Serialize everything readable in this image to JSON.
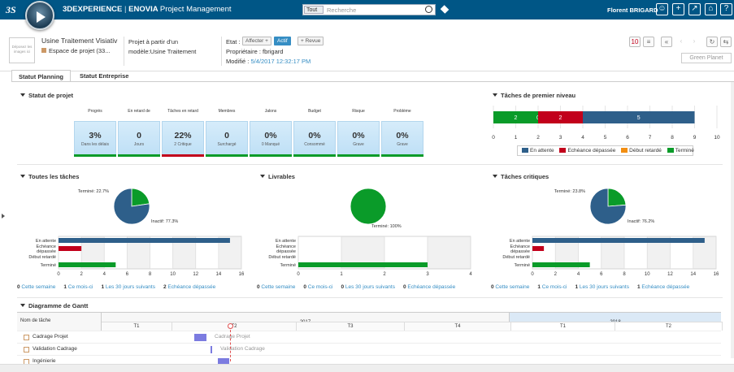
{
  "topbar": {
    "brand_bold": "3DEXPERIENCE",
    "brand_sep": "|",
    "brand_enovia": "ENOVIA",
    "brand_app": "Project Management",
    "search_scope": "Tout",
    "search_placeholder": "Recherche",
    "user": "Florent BRIGARD"
  },
  "header": {
    "thumb_text": "Déposez les images ici",
    "title": "Usine Traitement Visiativ",
    "subtitle": "Espace de projet (33...",
    "description": "Projet à partir d'un\nmodèle:Usine Traitement",
    "state_label": "Etat :",
    "state_buttons": [
      "Affecter +",
      "Actif",
      "+ Revue"
    ],
    "owner": "Propriétaire : fbrigard",
    "modified_label": "Modifié : ",
    "modified_value": "5/4/2017 12:32:17 PM",
    "green_planet": "Green Planet",
    "badge_count": "10"
  },
  "tabs": [
    "Statut Planning",
    "Statut Entreprise"
  ],
  "sections": {
    "project_status": "Statut de projet",
    "top_level_tasks": "Tâches de premier niveau",
    "all_tasks": "Toutes les tâches",
    "deliverables": "Livrables",
    "critical_tasks": "Tâches critiques",
    "gantt": "Diagramme de Gantt"
  },
  "kpis": [
    {
      "label": "Progrès",
      "value": "3%",
      "sub": "Dans les délais",
      "bar": "green"
    },
    {
      "label": "En retard de",
      "value": "0",
      "sub": "Jours",
      "bar": "green"
    },
    {
      "label": "Tâches en retard",
      "value": "22%",
      "sub": "2 Critique",
      "bar": "red"
    },
    {
      "label": "Membres",
      "value": "0",
      "sub": "Surchargé",
      "bar": "green"
    },
    {
      "label": "Jalons",
      "value": "0%",
      "sub": "0 Manqué",
      "bar": "green"
    },
    {
      "label": "Budget",
      "value": "0%",
      "sub": "Consommé",
      "bar": "green"
    },
    {
      "label": "Risque",
      "value": "0%",
      "sub": "Grave",
      "bar": "green"
    },
    {
      "label": "Problème",
      "value": "0%",
      "sub": "Grave",
      "bar": "green"
    }
  ],
  "colors": {
    "waiting": "#2e5f8a",
    "overdue": "#c2001b",
    "late_start": "#f28e12",
    "done": "#0a9b29",
    "link": "#368ec4"
  },
  "chart_data": [
    {
      "type": "bar",
      "title": "Tâches de premier niveau",
      "orientation": "horizontal-stacked",
      "series": [
        {
          "name": "Terminé",
          "value": 2,
          "color": "#0a9b29"
        },
        {
          "name": "Début retardé",
          "value": 0,
          "color": "#f28e12"
        },
        {
          "name": "Echéance dépassée",
          "value": 2,
          "color": "#c2001b"
        },
        {
          "name": "En attente",
          "value": 5,
          "color": "#2e5f8a"
        }
      ],
      "xlim": [
        0,
        10
      ],
      "xticks": [
        "0",
        "1",
        "2",
        "3",
        "4",
        "5",
        "6",
        "7",
        "8",
        "9",
        "10"
      ],
      "legend": [
        "En attente",
        "Echéance dépassée",
        "Début retardé",
        "Terminé"
      ]
    },
    {
      "type": "pie",
      "title": "Toutes les tâches",
      "slices": [
        {
          "label": "Terminé: 22.7%",
          "value": 22.7,
          "color": "#0a9b29"
        },
        {
          "label": "Inactif: 77.3%",
          "value": 77.3,
          "color": "#2e5f8a"
        }
      ]
    },
    {
      "type": "bar",
      "title": "Toutes les tâches",
      "categories": [
        "En attente",
        "Echéance dépassée",
        "Début retardé",
        "Terminé"
      ],
      "values": [
        15,
        2,
        0,
        5
      ],
      "colors": [
        "#2e5f8a",
        "#c2001b",
        "#f28e12",
        "#0a9b29"
      ],
      "xlim": [
        0,
        16
      ],
      "xticks": [
        "0",
        "2",
        "4",
        "6",
        "8",
        "10",
        "12",
        "14",
        "16"
      ]
    },
    {
      "type": "pie",
      "title": "Livrables",
      "slices": [
        {
          "label": "Terminé: 100%",
          "value": 100,
          "color": "#0a9b29"
        }
      ]
    },
    {
      "type": "bar",
      "title": "Livrables",
      "categories": [
        "En attente",
        "Echéance dépassée",
        "Début retardé",
        "Terminé"
      ],
      "values": [
        0,
        0,
        0,
        3
      ],
      "colors": [
        "#2e5f8a",
        "#c2001b",
        "#f28e12",
        "#0a9b29"
      ],
      "xlim": [
        0,
        4
      ],
      "xticks": [
        "0",
        "1",
        "2",
        "3",
        "4"
      ]
    },
    {
      "type": "pie",
      "title": "Tâches critiques",
      "slices": [
        {
          "label": "Terminé: 23.8%",
          "value": 23.8,
          "color": "#0a9b29"
        },
        {
          "label": "Inactif: 76.2%",
          "value": 76.2,
          "color": "#2e5f8a"
        }
      ]
    },
    {
      "type": "bar",
      "title": "Tâches critiques",
      "categories": [
        "En attente",
        "Echéance dépassée",
        "Début retardé",
        "Terminé"
      ],
      "values": [
        15,
        1,
        0,
        5
      ],
      "colors": [
        "#2e5f8a",
        "#c2001b",
        "#f28e12",
        "#0a9b29"
      ],
      "xlim": [
        0,
        16
      ],
      "xticks": [
        "0",
        "2",
        "4",
        "6",
        "8",
        "10",
        "12",
        "14",
        "16"
      ]
    }
  ],
  "bar_labels": [
    "En attente",
    "Echéance\ndépassée",
    "Début retardé",
    "Terminé"
  ],
  "stat_rows": [
    [
      {
        "n": "0",
        "t": "Cette semaine"
      },
      {
        "n": "1",
        "t": "Ce mois-ci"
      },
      {
        "n": "1",
        "t": "Les 30 jours suivants"
      },
      {
        "n": "2",
        "t": "Echéance dépassée"
      }
    ],
    [
      {
        "n": "0",
        "t": "Cette semaine"
      },
      {
        "n": "0",
        "t": "Ce mois-ci"
      },
      {
        "n": "0",
        "t": "Les 30 jours suivants"
      },
      {
        "n": "0",
        "t": "Echéance dépassée"
      }
    ],
    [
      {
        "n": "0",
        "t": "Cette semaine"
      },
      {
        "n": "1",
        "t": "Ce mois-ci"
      },
      {
        "n": "1",
        "t": "Les 30 jours suivants"
      },
      {
        "n": "1",
        "t": "Echéance dépassée"
      }
    ]
  ],
  "gantt": {
    "name_header": "Nom de tâche",
    "years": [
      "2017",
      "2018"
    ],
    "quarters": [
      "T1",
      "T2",
      "T3",
      "T4",
      "T1",
      "T2"
    ],
    "tasks": [
      {
        "name": "Cadrage Projet",
        "bar_label": "Cadrage Projet"
      },
      {
        "name": "Validation Cadrage",
        "bar_label": "Validation Cadrage"
      },
      {
        "name": "Ingénierie",
        "bar_label": ""
      }
    ]
  }
}
